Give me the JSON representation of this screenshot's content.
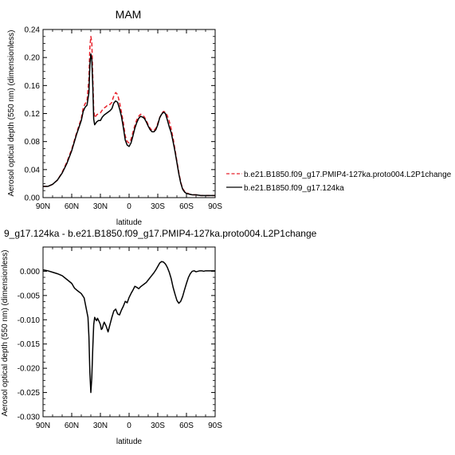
{
  "chart_data": [
    {
      "type": "line",
      "title": "MAM",
      "xlabel": "latitude",
      "ylabel": "Aerosol optical depth (550 nm) (dimensionless)",
      "xlim": [
        90,
        -90
      ],
      "ylim": [
        0,
        0.24
      ],
      "x_ticks": [
        90,
        60,
        30,
        0,
        -30,
        -60,
        -90
      ],
      "x_tick_labels": [
        "90N",
        "60N",
        "30N",
        "0",
        "30S",
        "60S",
        "90S"
      ],
      "y_ticks": [
        0,
        0.04,
        0.08,
        0.12,
        0.16,
        0.2,
        0.24
      ],
      "y_tick_labels": [
        "0.00",
        "0.04",
        "0.08",
        "0.12",
        "0.16",
        "0.20",
        "0.24"
      ],
      "legend_placement": "right",
      "series": [
        {
          "name": "b.e21.B1850.f09_g17.PMIP4-127ka.proto004.L2P1change",
          "color": "#e8202a",
          "dash": "dashed",
          "x": [
            90,
            85,
            80,
            75,
            70,
            65,
            60,
            55,
            50,
            48,
            46,
            44,
            42,
            41,
            40,
            39,
            38,
            37,
            36,
            34,
            32,
            30,
            28,
            26,
            24,
            22,
            20,
            18,
            17,
            16,
            14,
            12,
            10,
            8,
            6,
            4,
            2,
            0,
            -2,
            -4,
            -6,
            -8,
            -10,
            -12,
            -14,
            -16,
            -18,
            -20,
            -22,
            -24,
            -26,
            -28,
            -30,
            -32,
            -34,
            -36,
            -38,
            -40,
            -42,
            -44,
            -46,
            -48,
            -50,
            -52,
            -54,
            -56,
            -58,
            -60,
            -63,
            -66,
            -70,
            -75,
            -80,
            -85,
            -90
          ],
          "y": [
            0.016,
            0.016,
            0.019,
            0.025,
            0.036,
            0.051,
            0.069,
            0.092,
            0.113,
            0.128,
            0.134,
            0.138,
            0.17,
            0.215,
            0.23,
            0.222,
            0.175,
            0.125,
            0.114,
            0.118,
            0.12,
            0.121,
            0.125,
            0.128,
            0.13,
            0.133,
            0.133,
            0.136,
            0.141,
            0.145,
            0.15,
            0.147,
            0.136,
            0.122,
            0.107,
            0.088,
            0.08,
            0.078,
            0.083,
            0.093,
            0.103,
            0.111,
            0.116,
            0.119,
            0.118,
            0.115,
            0.11,
            0.104,
            0.099,
            0.096,
            0.096,
            0.099,
            0.106,
            0.114,
            0.12,
            0.123,
            0.122,
            0.117,
            0.109,
            0.098,
            0.085,
            0.069,
            0.052,
            0.036,
            0.022,
            0.013,
            0.009,
            0.007,
            0.005,
            0.004,
            0.004,
            0.003,
            0.003,
            0.003,
            0.003
          ]
        },
        {
          "name": "b.e21.B1850.f09_g17.124ka",
          "color": "#000000",
          "dash": "solid",
          "x": [
            90,
            85,
            80,
            75,
            70,
            65,
            60,
            55,
            50,
            48,
            46,
            44,
            42,
            41,
            40,
            39,
            38,
            37,
            36,
            34,
            32,
            30,
            28,
            26,
            24,
            22,
            20,
            18,
            17,
            16,
            14,
            12,
            10,
            8,
            6,
            4,
            2,
            0,
            -2,
            -4,
            -6,
            -8,
            -10,
            -12,
            -14,
            -16,
            -18,
            -20,
            -22,
            -24,
            -26,
            -28,
            -30,
            -32,
            -34,
            -36,
            -38,
            -40,
            -42,
            -44,
            -46,
            -48,
            -50,
            -52,
            -54,
            -56,
            -58,
            -60,
            -63,
            -66,
            -70,
            -75,
            -80,
            -85,
            -90
          ],
          "y": [
            0.016,
            0.016,
            0.019,
            0.025,
            0.035,
            0.049,
            0.067,
            0.09,
            0.11,
            0.123,
            0.129,
            0.132,
            0.15,
            0.19,
            0.205,
            0.197,
            0.16,
            0.112,
            0.104,
            0.108,
            0.11,
            0.11,
            0.115,
            0.118,
            0.12,
            0.122,
            0.124,
            0.127,
            0.131,
            0.135,
            0.138,
            0.136,
            0.127,
            0.116,
            0.1,
            0.082,
            0.075,
            0.073,
            0.078,
            0.088,
            0.099,
            0.107,
            0.113,
            0.116,
            0.115,
            0.113,
            0.108,
            0.102,
            0.097,
            0.094,
            0.094,
            0.097,
            0.104,
            0.114,
            0.119,
            0.122,
            0.12,
            0.111,
            0.101,
            0.093,
            0.08,
            0.066,
            0.05,
            0.034,
            0.021,
            0.012,
            0.008,
            0.006,
            0.005,
            0.004,
            0.004,
            0.003,
            0.003,
            0.003,
            0.003
          ]
        }
      ]
    },
    {
      "type": "line",
      "title": "9_g17.124ka - b.e21.B1850.f09_g17.PMIP4-127ka.proto004.L2P1change",
      "xlabel": "latitude",
      "ylabel": "Aerosol optical depth (550 nm) (dimensionless)",
      "xlim": [
        90,
        -90
      ],
      "ylim": [
        -0.03,
        0.005
      ],
      "x_ticks": [
        90,
        60,
        30,
        0,
        -30,
        -60,
        -90
      ],
      "x_tick_labels": [
        "90N",
        "60N",
        "30N",
        "0",
        "30S",
        "60S",
        "90S"
      ],
      "y_ticks": [
        0,
        -0.005,
        -0.01,
        -0.015,
        -0.02,
        -0.025,
        -0.03
      ],
      "y_tick_labels": [
        "0.000",
        "-0.005",
        "-0.010",
        "-0.015",
        "-0.020",
        "-0.025",
        "-0.030"
      ],
      "series": [
        {
          "color": "#000000",
          "dash": "solid",
          "x": [
            90,
            85,
            80,
            75,
            70,
            65,
            60,
            57,
            54,
            50,
            47,
            45,
            43,
            42,
            41,
            40,
            39,
            38,
            37,
            36,
            35,
            34,
            33,
            32,
            31,
            30,
            29,
            28,
            27,
            26,
            24,
            22,
            20,
            18,
            16,
            14,
            12,
            10,
            8,
            6,
            4,
            2,
            0,
            -2,
            -4,
            -6,
            -8,
            -10,
            -12,
            -14,
            -16,
            -18,
            -20,
            -22,
            -24,
            -26,
            -28,
            -30,
            -32,
            -34,
            -36,
            -38,
            -40,
            -42,
            -44,
            -46,
            -48,
            -50,
            -52,
            -54,
            -56,
            -58,
            -60,
            -62,
            -64,
            -66,
            -68,
            -70,
            -72,
            -74,
            -76,
            -78,
            -80,
            -85,
            -90
          ],
          "y": [
            0.0003,
            0.0001,
            -0.0002,
            -0.0005,
            -0.0009,
            -0.0017,
            -0.0025,
            -0.0035,
            -0.004,
            -0.0046,
            -0.0055,
            -0.0075,
            -0.0095,
            -0.0135,
            -0.021,
            -0.025,
            -0.022,
            -0.016,
            -0.011,
            -0.0095,
            -0.0099,
            -0.0102,
            -0.0097,
            -0.0101,
            -0.0105,
            -0.011,
            -0.012,
            -0.0118,
            -0.011,
            -0.0105,
            -0.0113,
            -0.0125,
            -0.011,
            -0.0095,
            -0.0082,
            -0.0078,
            -0.0088,
            -0.009,
            -0.008,
            -0.0072,
            -0.0062,
            -0.0065,
            -0.0054,
            -0.0046,
            -0.0039,
            -0.0031,
            -0.0033,
            -0.0036,
            -0.0032,
            -0.0029,
            -0.0026,
            -0.0023,
            -0.0018,
            -0.0013,
            -0.0008,
            -0.0003,
            0.0003,
            0.001,
            0.0017,
            0.002,
            0.0019,
            0.0015,
            0.0008,
            -0.0002,
            -0.0015,
            -0.0033,
            -0.0047,
            -0.006,
            -0.0066,
            -0.0062,
            -0.0052,
            -0.0038,
            -0.0025,
            -0.0013,
            -0.0005,
            0.0,
            0.0001,
            -0.0001,
            0.0,
            0.0001,
            0.0001,
            0.0,
            0.0001,
            0.0001,
            0.0001
          ]
        }
      ]
    }
  ]
}
